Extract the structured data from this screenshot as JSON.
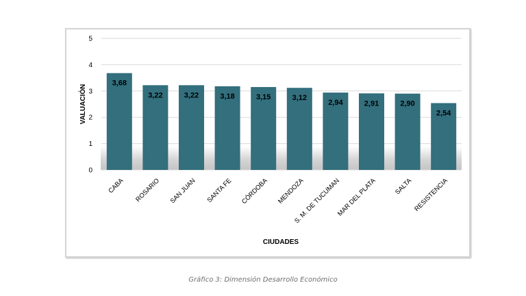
{
  "chart_data": {
    "type": "bar",
    "categories": [
      "CABA",
      "ROSARIO",
      "SAN JUAN",
      "SANTA FE",
      "CÓRDOBA",
      "MENDOZA",
      "S. M. DE TUCUMAN",
      "MAR DEL PLATA",
      "SALTA",
      "RESISTENCIA"
    ],
    "values": [
      3.68,
      3.22,
      3.22,
      3.18,
      3.15,
      3.12,
      2.94,
      2.91,
      2.9,
      2.54
    ],
    "data_labels": [
      "3,68",
      "3,22",
      "3,22",
      "3,18",
      "3,15",
      "3,12",
      "2,94",
      "2,91",
      "2,90",
      "2,54"
    ],
    "yticks": [
      "0",
      "1",
      "2",
      "3",
      "4",
      "5"
    ],
    "ylim": [
      0,
      5
    ],
    "xlabel": "CIUDADES",
    "ylabel": "VALUACIÓN",
    "grid": true,
    "legend": "none",
    "bar_color": "#336f7d",
    "grid_color": "#d9d9d9"
  },
  "caption": "Gráfico 3: Dimensión Desarrollo Económico"
}
